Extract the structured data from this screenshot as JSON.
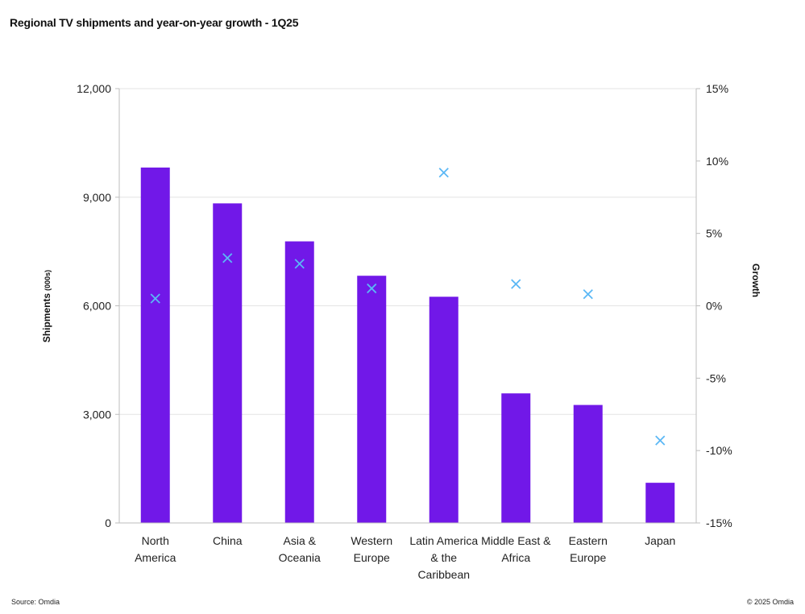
{
  "chart_data": {
    "type": "bar",
    "title": "Regional TV shipments and year-on-year growth - 1Q25",
    "categories": [
      [
        "North",
        "America"
      ],
      [
        "China"
      ],
      [
        "Asia &",
        "Oceania"
      ],
      [
        "Western",
        "Europe"
      ],
      [
        "Latin America",
        "& the",
        "Caribbean"
      ],
      [
        "Middle East &",
        "Africa"
      ],
      [
        "Eastern",
        "Europe"
      ],
      [
        "Japan"
      ]
    ],
    "series": [
      {
        "values": [
          9820,
          8830,
          7780,
          6830,
          6250,
          3580,
          3260,
          1110
        ]
      },
      {
        "values": [
          0.5,
          3.3,
          2.9,
          1.2,
          9.2,
          1.5,
          0.8,
          -9.3
        ]
      }
    ],
    "y_left": {
      "label": "Shipments",
      "label_unit": "(000s)",
      "min": 0,
      "max": 12000,
      "ticks": [
        "0",
        "3,000",
        "6,000",
        "9,000",
        "12,000"
      ]
    },
    "y_right": {
      "label": "Growth",
      "min": -15,
      "max": 15,
      "ticks": [
        "-15%",
        "-10%",
        "-5%",
        "0%",
        "5%",
        "10%",
        "15%"
      ]
    },
    "grid": true,
    "colors": {
      "bar": "#7118E8",
      "marker": "#5BB8F5",
      "grid": "#e3e3e3",
      "axis": "#bdbdbd"
    }
  },
  "footer": {
    "source": "Source: Omdia",
    "copyright": "© 2025 Omdia"
  }
}
